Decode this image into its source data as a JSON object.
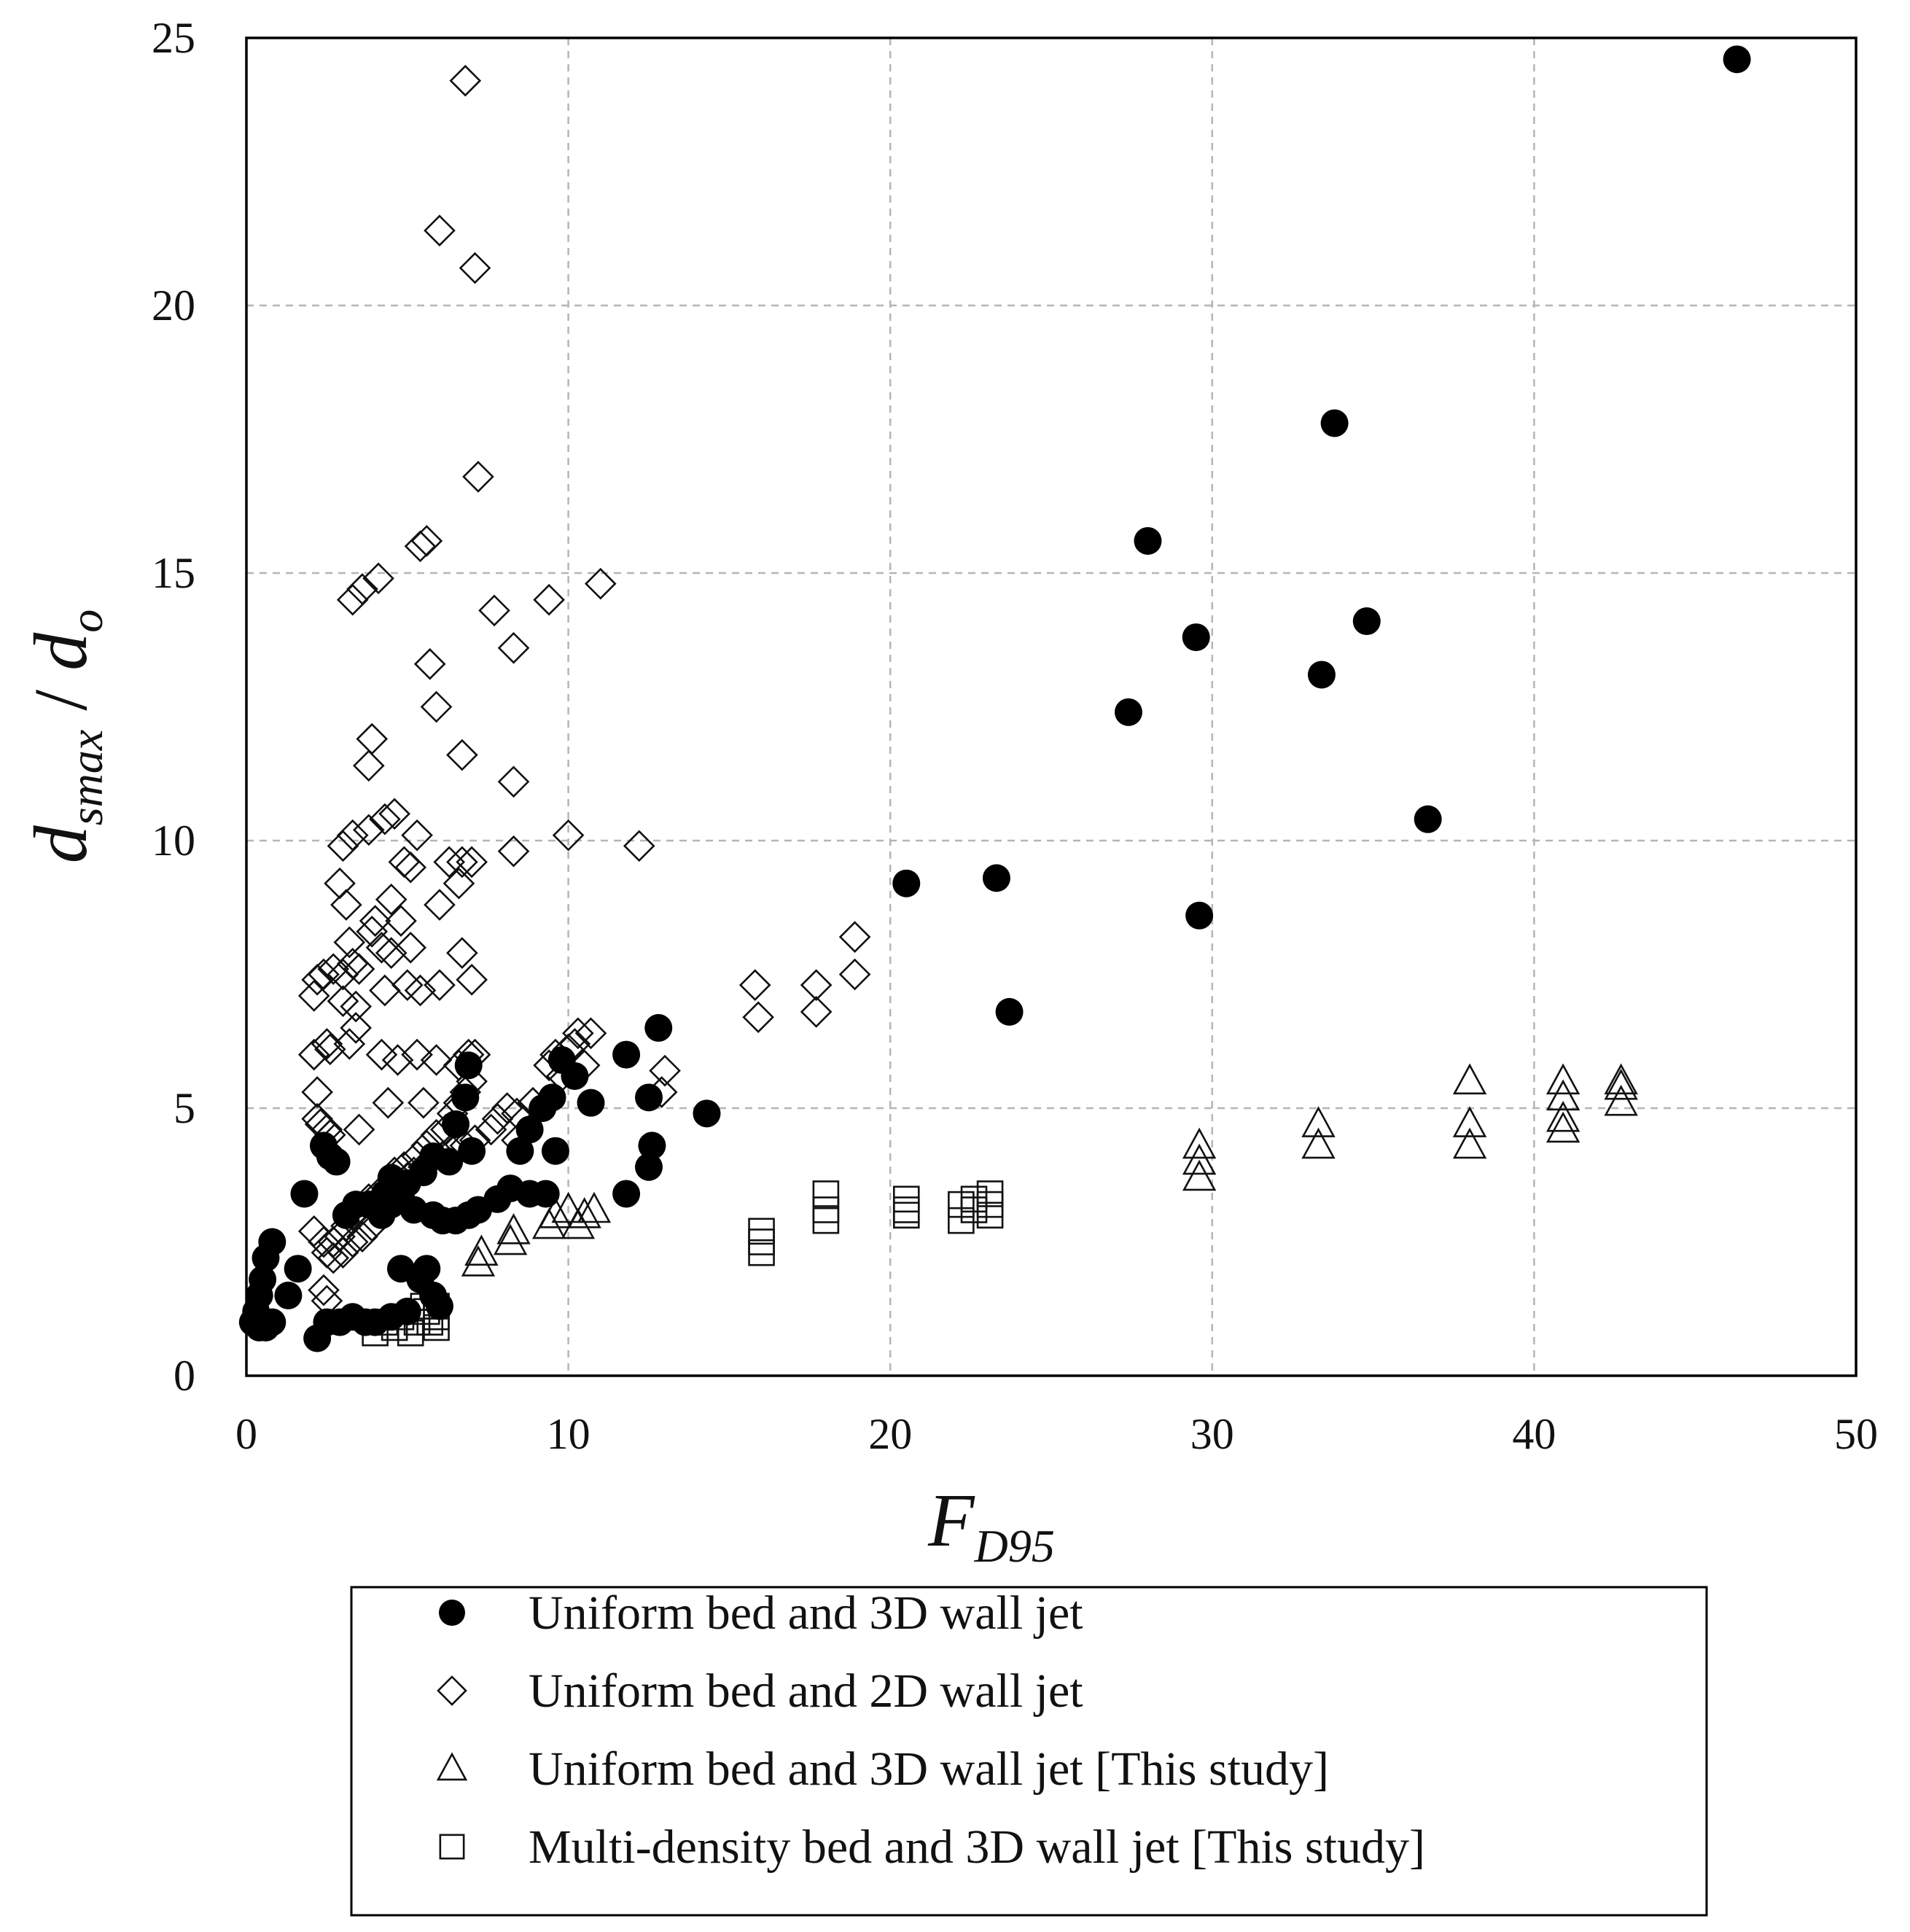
{
  "chart_data": {
    "type": "scatter",
    "xlabel": {
      "main": "F",
      "sub": "D95"
    },
    "ylabel": {
      "main": "d",
      "sub1": "smax",
      "sep": " / ",
      "main2": "d",
      "sub2": "o"
    },
    "xlim": [
      0,
      50
    ],
    "ylim": [
      0,
      25
    ],
    "xticks": [
      0,
      10,
      20,
      30,
      40,
      50
    ],
    "yticks": [
      0,
      5,
      10,
      15,
      20,
      25
    ],
    "grid": true,
    "legend_position": "bottom",
    "series": [
      {
        "name": "Uniform bed and 3D wall jet",
        "marker": "filled-circle",
        "color": "#000000",
        "points": [
          [
            46.3,
            24.6
          ],
          [
            33.8,
            17.8
          ],
          [
            28.0,
            15.6
          ],
          [
            29.5,
            13.8
          ],
          [
            34.8,
            14.1
          ],
          [
            33.4,
            13.1
          ],
          [
            27.4,
            12.4
          ],
          [
            36.7,
            10.4
          ],
          [
            20.5,
            9.2
          ],
          [
            23.3,
            9.3
          ],
          [
            29.6,
            8.6
          ],
          [
            23.7,
            6.8
          ],
          [
            12.8,
            6.5
          ],
          [
            11.8,
            6.0
          ],
          [
            12.5,
            5.2
          ],
          [
            14.3,
            4.9
          ],
          [
            12.6,
            4.3
          ],
          [
            12.5,
            3.9
          ],
          [
            11.8,
            3.4
          ],
          [
            10.7,
            5.1
          ],
          [
            10.2,
            5.6
          ],
          [
            9.8,
            5.9
          ],
          [
            9.5,
            5.2
          ],
          [
            9.2,
            5.0
          ],
          [
            8.8,
            4.6
          ],
          [
            8.5,
            4.2
          ],
          [
            9.6,
            4.2
          ],
          [
            9.3,
            3.4
          ],
          [
            8.8,
            3.4
          ],
          [
            8.2,
            3.5
          ],
          [
            7.8,
            3.3
          ],
          [
            7.2,
            3.1
          ],
          [
            6.9,
            3.0
          ],
          [
            6.5,
            2.9
          ],
          [
            6.1,
            2.9
          ],
          [
            5.8,
            3.0
          ],
          [
            5.2,
            3.1
          ],
          [
            4.8,
            3.4
          ],
          [
            4.5,
            3.2
          ],
          [
            4.2,
            3.0
          ],
          [
            3.8,
            3.2
          ],
          [
            3.4,
            3.2
          ],
          [
            3.1,
            3.0
          ],
          [
            6.5,
            4.7
          ],
          [
            6.8,
            5.2
          ],
          [
            6.9,
            5.8
          ],
          [
            6.3,
            4.0
          ],
          [
            5.8,
            4.1
          ],
          [
            5.5,
            3.8
          ],
          [
            5.0,
            3.6
          ],
          [
            4.5,
            3.7
          ],
          [
            4.3,
            3.4
          ],
          [
            7.0,
            4.2
          ],
          [
            2.4,
            4.3
          ],
          [
            2.6,
            4.1
          ],
          [
            2.8,
            4.0
          ],
          [
            1.8,
            3.4
          ],
          [
            1.6,
            2.0
          ],
          [
            1.3,
            1.5
          ],
          [
            0.8,
            2.5
          ],
          [
            0.6,
            2.2
          ],
          [
            0.5,
            1.8
          ],
          [
            0.4,
            1.5
          ],
          [
            0.3,
            1.2
          ],
          [
            0.2,
            1.0
          ],
          [
            0.4,
            0.9
          ],
          [
            0.6,
            0.9
          ],
          [
            0.8,
            1.0
          ],
          [
            5.6,
            2.0
          ],
          [
            5.4,
            1.8
          ],
          [
            4.8,
            2.0
          ],
          [
            5.8,
            1.5
          ],
          [
            6.0,
            1.3
          ],
          [
            2.2,
            0.7
          ],
          [
            2.5,
            1.0
          ],
          [
            2.9,
            1.0
          ],
          [
            3.3,
            1.1
          ],
          [
            3.7,
            1.0
          ],
          [
            4.0,
            1.0
          ],
          [
            4.5,
            1.1
          ],
          [
            5.0,
            1.2
          ]
        ]
      },
      {
        "name": "Uniform bed and 2D wall jet",
        "marker": "open-diamond",
        "color": "#000000",
        "points": [
          [
            6.8,
            24.2
          ],
          [
            6.0,
            21.4
          ],
          [
            7.1,
            20.7
          ],
          [
            7.2,
            16.8
          ],
          [
            5.6,
            15.6
          ],
          [
            5.4,
            15.5
          ],
          [
            3.3,
            14.5
          ],
          [
            3.6,
            14.7
          ],
          [
            4.1,
            14.9
          ],
          [
            11.0,
            14.8
          ],
          [
            9.4,
            14.5
          ],
          [
            7.7,
            14.3
          ],
          [
            8.3,
            13.6
          ],
          [
            5.7,
            13.3
          ],
          [
            5.9,
            12.5
          ],
          [
            3.9,
            11.9
          ],
          [
            3.8,
            11.4
          ],
          [
            6.7,
            11.6
          ],
          [
            8.3,
            11.1
          ],
          [
            4.6,
            10.5
          ],
          [
            4.3,
            10.4
          ],
          [
            3.0,
            9.9
          ],
          [
            3.3,
            10.1
          ],
          [
            3.8,
            10.2
          ],
          [
            5.3,
            10.1
          ],
          [
            10.0,
            10.1
          ],
          [
            12.2,
            9.9
          ],
          [
            8.3,
            9.8
          ],
          [
            4.9,
            9.6
          ],
          [
            5.1,
            9.5
          ],
          [
            6.3,
            9.6
          ],
          [
            6.7,
            9.6
          ],
          [
            7.0,
            9.6
          ],
          [
            6.6,
            9.2
          ],
          [
            2.9,
            9.2
          ],
          [
            3.1,
            8.8
          ],
          [
            4.0,
            8.5
          ],
          [
            3.9,
            8.3
          ],
          [
            4.5,
            8.9
          ],
          [
            6.0,
            8.8
          ],
          [
            4.8,
            8.5
          ],
          [
            3.2,
            8.1
          ],
          [
            4.2,
            8.0
          ],
          [
            4.5,
            7.9
          ],
          [
            5.1,
            8.0
          ],
          [
            6.7,
            7.9
          ],
          [
            18.9,
            8.2
          ],
          [
            18.9,
            7.5
          ],
          [
            17.7,
            7.3
          ],
          [
            15.8,
            7.3
          ],
          [
            17.7,
            6.8
          ],
          [
            15.9,
            6.7
          ],
          [
            2.2,
            7.4
          ],
          [
            2.4,
            7.5
          ],
          [
            2.7,
            7.6
          ],
          [
            3.0,
            7.5
          ],
          [
            3.3,
            7.7
          ],
          [
            3.5,
            7.6
          ],
          [
            4.3,
            7.2
          ],
          [
            5.0,
            7.3
          ],
          [
            5.4,
            7.2
          ],
          [
            6.0,
            7.3
          ],
          [
            7.0,
            7.4
          ],
          [
            2.1,
            7.1
          ],
          [
            3.0,
            7.0
          ],
          [
            3.4,
            6.9
          ],
          [
            3.4,
            6.5
          ],
          [
            3.2,
            6.2
          ],
          [
            2.5,
            6.2
          ],
          [
            2.1,
            6.0
          ],
          [
            2.6,
            6.1
          ],
          [
            4.2,
            6.0
          ],
          [
            4.7,
            5.9
          ],
          [
            5.3,
            6.0
          ],
          [
            5.9,
            5.9
          ],
          [
            6.6,
            5.8
          ],
          [
            6.9,
            6.0
          ],
          [
            7.1,
            6.0
          ],
          [
            2.2,
            5.3
          ],
          [
            4.4,
            5.1
          ],
          [
            5.5,
            5.1
          ],
          [
            3.5,
            4.6
          ],
          [
            2.2,
            4.8
          ],
          [
            2.3,
            4.7
          ],
          [
            2.5,
            4.6
          ],
          [
            2.6,
            4.5
          ],
          [
            9.6,
            6.0
          ],
          [
            10.2,
            6.2
          ],
          [
            10.3,
            6.4
          ],
          [
            10.7,
            6.4
          ],
          [
            10.0,
            6.1
          ],
          [
            9.8,
            5.6
          ],
          [
            10.5,
            5.8
          ],
          [
            9.4,
            5.8
          ],
          [
            13.0,
            5.7
          ],
          [
            12.9,
            5.3
          ],
          [
            8.9,
            5.1
          ],
          [
            8.4,
            4.9
          ],
          [
            8.1,
            5.0
          ],
          [
            7.8,
            4.8
          ],
          [
            7.6,
            4.6
          ],
          [
            8.4,
            4.4
          ],
          [
            7.1,
            4.4
          ],
          [
            6.8,
            4.3
          ],
          [
            6.4,
            4.2
          ],
          [
            6.1,
            4.1
          ],
          [
            5.7,
            4.0
          ],
          [
            5.5,
            3.9
          ],
          [
            5.2,
            3.8
          ],
          [
            5.0,
            3.7
          ],
          [
            4.7,
            3.6
          ],
          [
            4.4,
            3.5
          ],
          [
            4.1,
            3.4
          ],
          [
            3.8,
            3.3
          ],
          [
            3.6,
            3.1
          ],
          [
            3.3,
            3.0
          ],
          [
            3.1,
            2.8
          ],
          [
            2.9,
            2.6
          ],
          [
            2.7,
            2.5
          ],
          [
            2.5,
            2.3
          ],
          [
            6.2,
            4.6
          ],
          [
            6.4,
            4.9
          ],
          [
            6.6,
            5.1
          ],
          [
            6.8,
            5.3
          ],
          [
            7.0,
            5.5
          ],
          [
            5.9,
            4.5
          ],
          [
            5.6,
            4.3
          ],
          [
            5.3,
            4.1
          ],
          [
            4.9,
            3.9
          ],
          [
            4.6,
            3.8
          ],
          [
            2.1,
            2.7
          ],
          [
            2.4,
            2.5
          ],
          [
            2.7,
            2.2
          ],
          [
            3.0,
            2.3
          ],
          [
            3.3,
            2.5
          ],
          [
            3.6,
            2.6
          ],
          [
            3.9,
            2.8
          ],
          [
            2.4,
            1.6
          ],
          [
            2.5,
            1.4
          ]
        ]
      },
      {
        "name": "Uniform bed and 3D wall jet [This study]",
        "marker": "open-triangle",
        "color": "#000000",
        "points": [
          [
            42.7,
            5.5
          ],
          [
            42.7,
            5.4
          ],
          [
            42.7,
            5.1
          ],
          [
            40.9,
            5.5
          ],
          [
            40.9,
            5.2
          ],
          [
            40.9,
            4.8
          ],
          [
            40.9,
            4.6
          ],
          [
            38.0,
            5.5
          ],
          [
            38.0,
            4.7
          ],
          [
            38.0,
            4.3
          ],
          [
            33.3,
            4.7
          ],
          [
            33.3,
            4.3
          ],
          [
            29.6,
            4.3
          ],
          [
            29.6,
            4.0
          ],
          [
            29.6,
            3.7
          ],
          [
            10.8,
            3.1
          ],
          [
            10.5,
            3.0
          ],
          [
            10.3,
            2.8
          ],
          [
            10.0,
            3.1
          ],
          [
            9.6,
            3.0
          ],
          [
            9.4,
            2.8
          ],
          [
            8.3,
            2.7
          ],
          [
            8.2,
            2.5
          ],
          [
            7.3,
            2.3
          ],
          [
            7.2,
            2.1
          ]
        ]
      },
      {
        "name": "Multi-density bed and 3D wall jet [This study]",
        "marker": "open-square",
        "color": "#000000",
        "points": [
          [
            23.1,
            3.4
          ],
          [
            23.1,
            3.2
          ],
          [
            23.1,
            3.0
          ],
          [
            22.6,
            3.3
          ],
          [
            22.6,
            3.1
          ],
          [
            22.2,
            3.2
          ],
          [
            22.2,
            2.9
          ],
          [
            20.5,
            3.3
          ],
          [
            20.5,
            3.1
          ],
          [
            20.5,
            3.0
          ],
          [
            18.0,
            3.4
          ],
          [
            18.0,
            3.1
          ],
          [
            18.0,
            2.9
          ],
          [
            16.0,
            2.7
          ],
          [
            16.0,
            2.5
          ],
          [
            16.0,
            2.3
          ],
          [
            5.9,
            1.3
          ],
          [
            5.9,
            1.1
          ],
          [
            5.9,
            0.9
          ],
          [
            5.6,
            1.2
          ],
          [
            5.3,
            1.0
          ],
          [
            5.1,
            0.8
          ],
          [
            4.8,
            1.1
          ],
          [
            4.6,
            0.9
          ],
          [
            4.3,
            1.0
          ],
          [
            4.0,
            0.8
          ],
          [
            5.5,
            1.3
          ],
          [
            5.7,
            1.0
          ]
        ]
      }
    ]
  }
}
